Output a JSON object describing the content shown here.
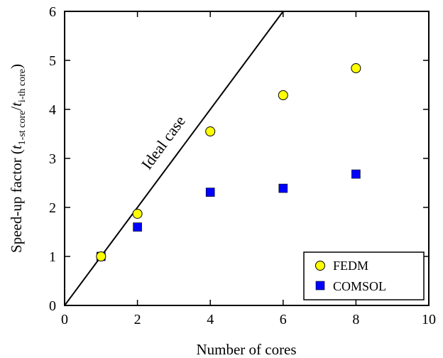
{
  "chart_data": {
    "type": "scatter",
    "xlabel": "Number of cores",
    "ylabel": {
      "prefix": "Speed-up factor (",
      "t1": "t",
      "sub1": "1-st core",
      "slash": "/",
      "t2": "t",
      "sub2": "i-th core",
      "suffix": ")"
    },
    "xlim": [
      0,
      10
    ],
    "ylim": [
      0,
      6
    ],
    "x_ticks": [
      0,
      2,
      4,
      6,
      8,
      10
    ],
    "y_ticks": [
      0,
      1,
      2,
      3,
      4,
      5,
      6
    ],
    "grid": false,
    "legend_position": "bottom-right",
    "series": [
      {
        "name": "FEDM",
        "marker": "circle",
        "color": "#ffff00",
        "x": [
          1,
          2,
          4,
          6,
          8
        ],
        "y": [
          1.0,
          1.87,
          3.55,
          4.29,
          4.84
        ]
      },
      {
        "name": "COMSOL",
        "marker": "square",
        "color": "#0000ff",
        "x": [
          1,
          2,
          4,
          6,
          8
        ],
        "y": [
          1.0,
          1.6,
          2.31,
          2.39,
          2.68
        ]
      }
    ],
    "reference_line": {
      "label": "Ideal case",
      "x": [
        0,
        6
      ],
      "y": [
        0,
        6
      ]
    }
  }
}
